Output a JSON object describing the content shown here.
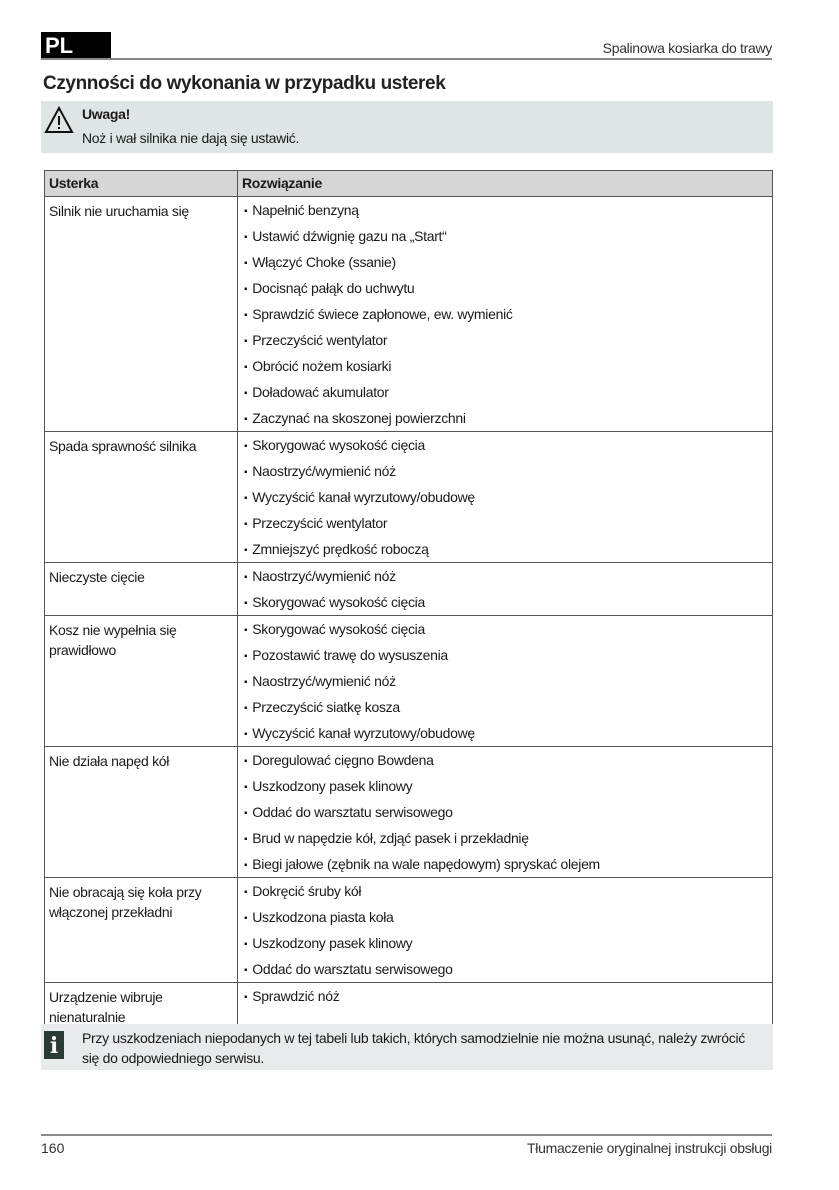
{
  "header": {
    "lang": "PL",
    "title": "Spalinowa kosiarka do trawy"
  },
  "heading": "Czynności do wykonania w przypadku usterek",
  "warning": {
    "icon": "warning-triangle-icon",
    "title": "Uwaga!",
    "text": "Noż i wał silnika nie dają się ustawić."
  },
  "table": {
    "headers": [
      "Usterka",
      "Rozwiązanie"
    ],
    "rows": [
      {
        "problem": "Silnik nie uruchamia się",
        "solutions": [
          "Napełnić benzyną",
          "Ustawić dźwignię gazu na „Start“",
          "Włączyć Choke (ssanie)",
          "Docisnąć pałąk do uchwytu",
          "Sprawdzić świece zapłonowe, ew. wymienić",
          "Przeczyścić wentylator",
          "Obrócić nożem kosiarki",
          "Doładować akumulator",
          "Zaczynać na skoszonej powierzchni"
        ]
      },
      {
        "problem": "Spada sprawność silnika",
        "solutions": [
          "Skorygować wysokość cięcia",
          "Naostrzyć/wymienić nóż",
          "Wyczyścić kanał wyrzutowy/obudowę",
          "Przeczyścić wentylator",
          "Zmniejszyć prędkość roboczą"
        ]
      },
      {
        "problem": "Nieczyste cięcie",
        "solutions": [
          "Naostrzyć/wymienić nóż",
          "Skorygować wysokość cięcia"
        ]
      },
      {
        "problem": "Kosz nie wypełnia się prawidłowo",
        "solutions": [
          "Skorygować wysokość cięcia",
          "Pozostawić trawę do wysuszenia",
          "Naostrzyć/wymienić nóż",
          "Przeczyścić siatkę kosza",
          "Wyczyścić kanał wyrzutowy/obudowę"
        ]
      },
      {
        "problem": "Nie działa napęd kół",
        "solutions": [
          "Doregulować cięgno Bowdena",
          "Uszkodzony pasek klinowy",
          "Oddać do warsztatu serwisowego",
          "Brud w napędzie kół, zdjąć pasek i przekładnię",
          "Biegi jałowe (zębnik na wale napędowym) spryskać olejem"
        ]
      },
      {
        "problem": "Nie obracają się koła przy włączonej przekładni",
        "solutions": [
          "Dokręcić śruby kół",
          "Uszkodzona piasta koła",
          "Uszkodzony pasek klinowy",
          "Oddać do warsztatu serwisowego"
        ]
      },
      {
        "problem": "Urządzenie wibruje nienaturalnie",
        "solutions": [
          "Sprawdzić nóż"
        ]
      }
    ]
  },
  "info": {
    "icon": "info-icon",
    "text": "Przy uszkodzeniach niepodanych w tej tabeli lub takich, których samodzielnie nie można usunąć, należy zwrócić się do odpowiedniego serwisu."
  },
  "footer": {
    "page": "160",
    "text": "Tłumaczenie oryginalnej instrukcji obsługi"
  }
}
